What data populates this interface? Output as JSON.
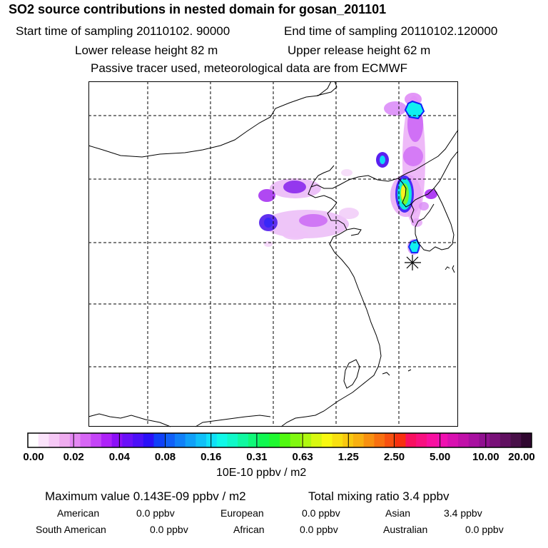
{
  "header": {
    "title": "SO2 source contributions in nested domain for gosan_201101",
    "start_time": "Start time of sampling 20110102. 90000",
    "end_time": "End time of sampling 20110102.120000",
    "lower_height": "Lower release height   82 m",
    "upper_height": "Upper release height   62 m",
    "note": "Passive tracer used, meteorological data are from ECMWF"
  },
  "colorbar": {
    "ticks": [
      "0.00",
      "0.02",
      "0.04",
      "0.08",
      "0.16",
      "0.31",
      "0.63",
      "1.25",
      "2.50",
      "5.00",
      "10.00",
      "20.00"
    ],
    "colors": [
      "#ffffff",
      "#fbe3fb",
      "#f5c8f5",
      "#efacef",
      "#e488f3",
      "#d766f5",
      "#c444f7",
      "#ae22f8",
      "#8c10f8",
      "#6a10f8",
      "#4c10f8",
      "#2a10f8",
      "#1040f8",
      "#1060f8",
      "#1080f8",
      "#10a0f8",
      "#10c0f8",
      "#10e0f8",
      "#10f8e8",
      "#10f8c8",
      "#10f8a0",
      "#10f878",
      "#10f850",
      "#20f830",
      "#50f810",
      "#80f810",
      "#b0f810",
      "#d8f810",
      "#f8f810",
      "#f8e010",
      "#f8c810",
      "#f8b010",
      "#f89010",
      "#f87010",
      "#f85010",
      "#f83010",
      "#f81060",
      "#f81080",
      "#f810a0",
      "#f010b0",
      "#d810b0",
      "#c010a8",
      "#a810a0",
      "#901090",
      "#781078",
      "#601060",
      "#481048",
      "#300830"
    ],
    "units": "10E-10 ppbv / m2"
  },
  "summary": {
    "max_value": "Maximum value  0.143E-09 ppbv / m2",
    "total_mixing": "Total mixing ratio       3.4 ppbv"
  },
  "regions": [
    {
      "name": "American",
      "value": "0.0 ppbv"
    },
    {
      "name": "European",
      "value": "0.0 ppbv"
    },
    {
      "name": "Asian",
      "value": "3.4 ppbv"
    },
    {
      "name": "South American",
      "value": "0.0 ppbv"
    },
    {
      "name": "African",
      "value": "0.0 ppbv"
    },
    {
      "name": "Australian",
      "value": "0.0 ppbv"
    }
  ]
}
